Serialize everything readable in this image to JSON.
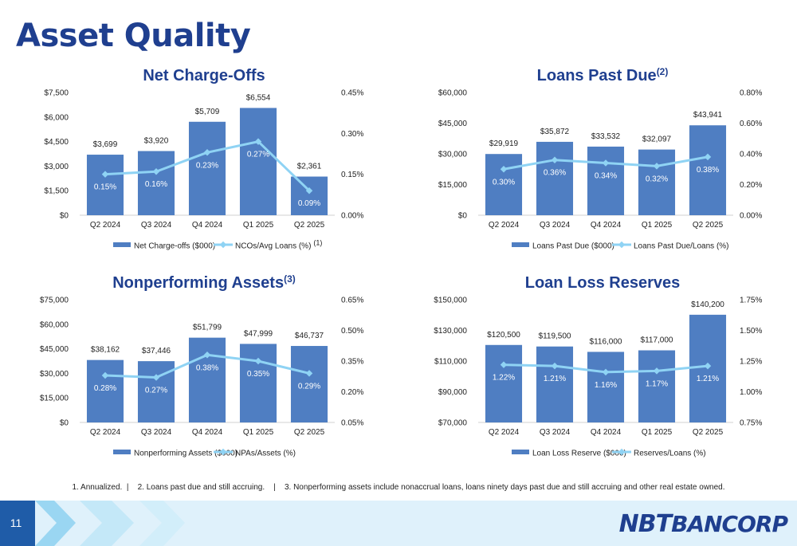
{
  "page": {
    "title": "Asset Quality",
    "page_number": "11",
    "logo_text_1": "NBT",
    "logo_text_2": "BANCORP",
    "footnote_1": "1. Annualized.",
    "footnote_2": "2. Loans past due and still accruing.",
    "footnote_3": "3. Nonperforming assets include nonaccrual loans, loans ninety days past due and still accruing and other real estate owned.",
    "colors": {
      "bar": "#4f7ec2",
      "line": "#8fd3f4",
      "title": "#1f3f8f",
      "band": "#dff1fb"
    }
  },
  "chart_data": [
    {
      "type": "bar",
      "title": "Net Charge-Offs",
      "title_sup": "",
      "categories": [
        "Q2 2024",
        "Q3 2024",
        "Q4 2024",
        "Q1 2025",
        "Q2 2025"
      ],
      "series": [
        {
          "name": "Net Charge-offs ($000)",
          "type": "bar",
          "axis": "left",
          "values": [
            3699,
            3920,
            5709,
            6554,
            2361
          ],
          "labels": [
            "$3,699",
            "$3,920",
            "$5,709",
            "$6,554",
            "$2,361"
          ]
        },
        {
          "name": "NCOs/Avg Loans (%)",
          "name_sup": "(1)",
          "type": "line",
          "axis": "right",
          "values": [
            0.15,
            0.16,
            0.23,
            0.27,
            0.09
          ],
          "labels": [
            "0.15%",
            "0.16%",
            "0.23%",
            "0.27%",
            "0.09%"
          ]
        }
      ],
      "left_axis": {
        "min": 0,
        "max": 7500,
        "ticks": [
          "$0",
          "$1,500",
          "$3,000",
          "$4,500",
          "$6,000",
          "$7,500"
        ]
      },
      "right_axis": {
        "min": 0,
        "max": 0.45,
        "ticks": [
          "0.00%",
          "0.15%",
          "0.30%",
          "0.45%"
        ]
      },
      "legend": "bottom"
    },
    {
      "type": "bar",
      "title": "Loans Past Due",
      "title_sup": "(2)",
      "categories": [
        "Q2 2024",
        "Q3 2024",
        "Q4 2024",
        "Q1 2025",
        "Q2 2025"
      ],
      "series": [
        {
          "name": "Loans Past Due ($000)",
          "type": "bar",
          "axis": "left",
          "values": [
            29919,
            35872,
            33532,
            32097,
            43941
          ],
          "labels": [
            "$29,919",
            "$35,872",
            "$33,532",
            "$32,097",
            "$43,941"
          ]
        },
        {
          "name": "Loans Past Due/Loans (%)",
          "name_sup": "",
          "type": "line",
          "axis": "right",
          "values": [
            0.3,
            0.36,
            0.34,
            0.32,
            0.38
          ],
          "labels": [
            "0.30%",
            "0.36%",
            "0.34%",
            "0.32%",
            "0.38%"
          ]
        }
      ],
      "left_axis": {
        "min": 0,
        "max": 60000,
        "ticks": [
          "$0",
          "$15,000",
          "$30,000",
          "$45,000",
          "$60,000"
        ]
      },
      "right_axis": {
        "min": 0,
        "max": 0.8,
        "ticks": [
          "0.00%",
          "0.20%",
          "0.40%",
          "0.60%",
          "0.80%"
        ]
      },
      "legend": "bottom"
    },
    {
      "type": "bar",
      "title": "Nonperforming Assets",
      "title_sup": "(3)",
      "categories": [
        "Q2 2024",
        "Q3 2024",
        "Q4 2024",
        "Q1 2025",
        "Q2 2025"
      ],
      "series": [
        {
          "name": "Nonperforming Assets ($000)",
          "type": "bar",
          "axis": "left",
          "values": [
            38162,
            37446,
            51799,
            47999,
            46737
          ],
          "labels": [
            "$38,162",
            "$37,446",
            "$51,799",
            "$47,999",
            "$46,737"
          ]
        },
        {
          "name": "NPAs/Assets (%)",
          "name_sup": "",
          "type": "line",
          "axis": "right",
          "values": [
            0.28,
            0.27,
            0.38,
            0.35,
            0.29
          ],
          "labels": [
            "0.28%",
            "0.27%",
            "0.38%",
            "0.35%",
            "0.29%"
          ]
        }
      ],
      "left_axis": {
        "min": 0,
        "max": 75000,
        "ticks": [
          "$0",
          "$15,000",
          "$30,000",
          "$45,000",
          "$60,000",
          "$75,000"
        ]
      },
      "right_axis": {
        "min": 0.05,
        "max": 0.65,
        "ticks": [
          "0.05%",
          "0.20%",
          "0.35%",
          "0.50%",
          "0.65%"
        ]
      },
      "legend": "bottom"
    },
    {
      "type": "bar",
      "title": "Loan Loss Reserves",
      "title_sup": "",
      "categories": [
        "Q2 2024",
        "Q3 2024",
        "Q4 2024",
        "Q1 2025",
        "Q2 2025"
      ],
      "series": [
        {
          "name": "Loan Loss Reserve ($000)",
          "type": "bar",
          "axis": "left",
          "values": [
            120500,
            119500,
            116000,
            117000,
            140200
          ],
          "labels": [
            "$120,500",
            "$119,500",
            "$116,000",
            "$117,000",
            "$140,200"
          ]
        },
        {
          "name": "Reserves/Loans (%)",
          "name_sup": "",
          "type": "line",
          "axis": "right",
          "values": [
            1.22,
            1.21,
            1.16,
            1.17,
            1.21
          ],
          "labels": [
            "1.22%",
            "1.21%",
            "1.16%",
            "1.17%",
            "1.21%"
          ]
        }
      ],
      "left_axis": {
        "min": 70000,
        "max": 150000,
        "ticks": [
          "$70,000",
          "$90,000",
          "$110,000",
          "$130,000",
          "$150,000"
        ]
      },
      "right_axis": {
        "min": 0.75,
        "max": 1.75,
        "ticks": [
          "0.75%",
          "1.00%",
          "1.25%",
          "1.50%",
          "1.75%"
        ]
      },
      "legend": "bottom"
    }
  ]
}
